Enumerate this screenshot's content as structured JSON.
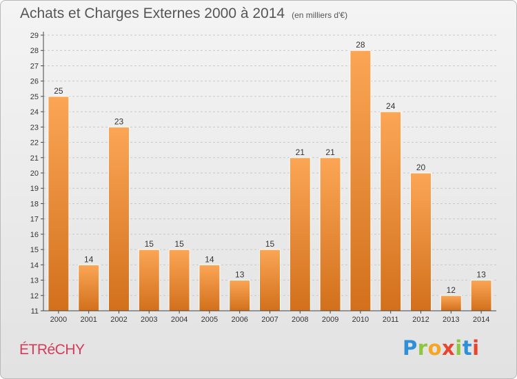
{
  "chart_data": {
    "type": "bar",
    "title": "Achats et Charges Externes 2000 à 2014",
    "subtitle": "(en milliers d'€)",
    "categories": [
      "2000",
      "2001",
      "2002",
      "2003",
      "2004",
      "2005",
      "2006",
      "2007",
      "2008",
      "2009",
      "2010",
      "2011",
      "2012",
      "2013",
      "2014"
    ],
    "values": [
      25,
      14,
      23,
      15,
      15,
      14,
      13,
      15,
      21,
      21,
      28,
      24,
      20,
      12,
      13
    ],
    "ylim": [
      11,
      29
    ],
    "yticks": [
      11,
      12,
      13,
      14,
      15,
      16,
      17,
      18,
      19,
      20,
      21,
      22,
      23,
      24,
      25,
      26,
      27,
      28,
      29
    ],
    "grid": true,
    "xlabel": "",
    "ylabel": ""
  },
  "commune": "ÉTRéCHY",
  "logo": {
    "letters": [
      "P",
      "r",
      "o",
      "x",
      "i",
      "t",
      "i"
    ],
    "colors": [
      "#2f8fd8",
      "#8dc63f",
      "#f5a623",
      "#e8452c",
      "#8dc63f",
      "#2f8fd8",
      "#e8452c"
    ]
  },
  "colors": {
    "bar_top": "#fba655",
    "bar_bottom": "#d2701c",
    "grid": "#c8c8c8",
    "axis": "#444444"
  }
}
